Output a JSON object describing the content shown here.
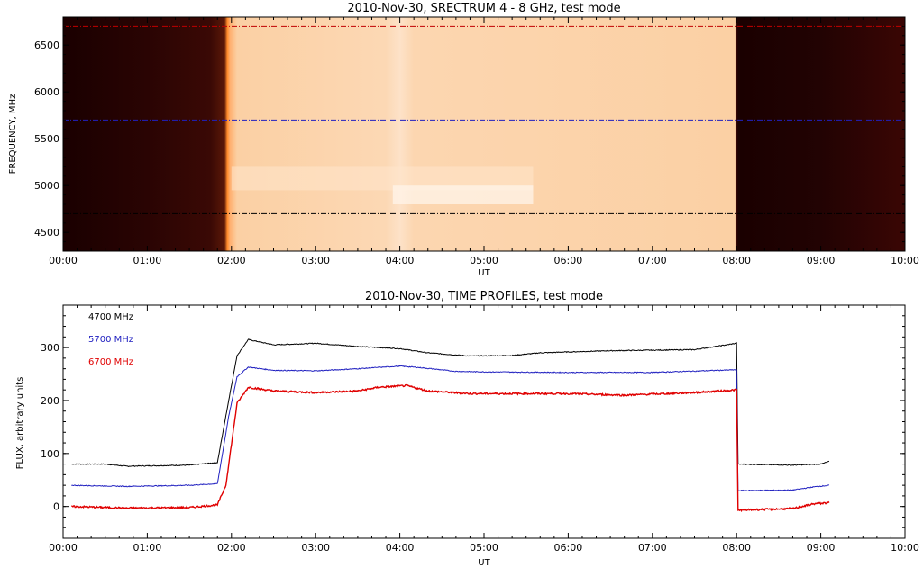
{
  "chart_data": [
    {
      "type": "heatmap",
      "title": "2010-Nov-30,  SRECTRUM 4 - 8 GHz,  test mode",
      "xlabel": "UT",
      "ylabel": "FREQUENCY, MHz",
      "x_ticks": [
        "00:00",
        "01:00",
        "02:00",
        "03:00",
        "04:00",
        "05:00",
        "06:00",
        "07:00",
        "08:00",
        "09:00",
        "10:00"
      ],
      "y_ticks": [
        4500,
        5000,
        5500,
        6000,
        6500
      ],
      "xlim": [
        "00:00",
        "10:00"
      ],
      "ylim": [
        4300,
        6800
      ],
      "colormap": "dark red to pale orange",
      "colors": {
        "low": "#1a0000",
        "mid": "#5a1808",
        "edge": "#ff8a2a",
        "high": "#fbd0a4",
        "bright": "#fff4ea"
      },
      "intensity_regions": [
        {
          "from": "00:00",
          "to": "01:55",
          "level": "low"
        },
        {
          "from": "01:57",
          "to": "02:00",
          "level": "peak"
        },
        {
          "from": "02:00",
          "to": "08:00",
          "level": "high"
        },
        {
          "from": "08:00",
          "to": "10:00",
          "level": "low"
        }
      ],
      "bright_features": [
        {
          "from": "02:00",
          "to": "05:35",
          "freq_from": 4950,
          "freq_to": 5200
        },
        {
          "from": "03:55",
          "to": "05:35",
          "freq_from": 4800,
          "freq_to": 5000
        }
      ],
      "reference_lines": [
        {
          "frequency": 6700,
          "color": "#c00000",
          "style": "dash-dot"
        },
        {
          "frequency": 5700,
          "color": "#2020c0",
          "style": "dash-dot"
        },
        {
          "frequency": 4700,
          "color": "#000000",
          "style": "dash-dot"
        }
      ]
    },
    {
      "type": "line",
      "title": "2010-Nov-30,  TIME PROFILES,  test mode",
      "xlabel": "UT",
      "ylabel": "FLUX, arbitrary units",
      "x_ticks": [
        "00:00",
        "01:00",
        "02:00",
        "03:00",
        "04:00",
        "05:00",
        "06:00",
        "07:00",
        "08:00",
        "09:00",
        "10:00"
      ],
      "y_ticks": [
        0,
        100,
        200,
        300
      ],
      "xlim": [
        "00:00",
        "10:00"
      ],
      "ylim": [
        -60,
        380
      ],
      "legend": "top-left",
      "series": [
        {
          "name": "4700 MHz",
          "color": "#000000",
          "points": [
            [
              "00:06",
              80
            ],
            [
              "00:30",
              80
            ],
            [
              "00:45",
              76
            ],
            [
              "01:30",
              78
            ],
            [
              "01:50",
              83
            ],
            [
              "01:58",
              200
            ],
            [
              "02:04",
              285
            ],
            [
              "02:12",
              315
            ],
            [
              "02:30",
              305
            ],
            [
              "03:00",
              308
            ],
            [
              "03:30",
              302
            ],
            [
              "04:00",
              298
            ],
            [
              "04:20",
              290
            ],
            [
              "04:50",
              284
            ],
            [
              "05:20",
              285
            ],
            [
              "05:40",
              290
            ],
            [
              "06:30",
              294
            ],
            [
              "07:30",
              296
            ],
            [
              "08:00",
              308
            ],
            [
              "08:01",
              80
            ],
            [
              "08:40",
              78
            ],
            [
              "09:00",
              80
            ],
            [
              "09:06",
              85
            ]
          ]
        },
        {
          "name": "5700 MHz",
          "color": "#2020c0",
          "points": [
            [
              "00:06",
              40
            ],
            [
              "00:45",
              38
            ],
            [
              "01:30",
              40
            ],
            [
              "01:50",
              43
            ],
            [
              "01:58",
              170
            ],
            [
              "02:04",
              245
            ],
            [
              "02:12",
              263
            ],
            [
              "02:30",
              257
            ],
            [
              "03:00",
              256
            ],
            [
              "03:30",
              260
            ],
            [
              "04:00",
              265
            ],
            [
              "04:15",
              262
            ],
            [
              "04:40",
              255
            ],
            [
              "05:00",
              254
            ],
            [
              "06:00",
              253
            ],
            [
              "07:00",
              253
            ],
            [
              "08:00",
              258
            ],
            [
              "08:01",
              30
            ],
            [
              "08:40",
              31
            ],
            [
              "08:55",
              37
            ],
            [
              "09:06",
              40
            ]
          ]
        },
        {
          "name": "6700 MHz",
          "color": "#e00000",
          "points": [
            [
              "00:06",
              0
            ],
            [
              "00:45",
              -3
            ],
            [
              "01:30",
              -2
            ],
            [
              "01:50",
              3
            ],
            [
              "01:56",
              40
            ],
            [
              "02:04",
              195
            ],
            [
              "02:12",
              225
            ],
            [
              "02:30",
              218
            ],
            [
              "03:00",
              215
            ],
            [
              "03:30",
              218
            ],
            [
              "03:45",
              225
            ],
            [
              "04:05",
              228
            ],
            [
              "04:20",
              218
            ],
            [
              "04:50",
              213
            ],
            [
              "06:00",
              213
            ],
            [
              "06:40",
              210
            ],
            [
              "07:30",
              215
            ],
            [
              "08:00",
              220
            ],
            [
              "08:01",
              -7
            ],
            [
              "08:40",
              -4
            ],
            [
              "08:55",
              5
            ],
            [
              "09:06",
              7
            ]
          ]
        }
      ]
    }
  ]
}
